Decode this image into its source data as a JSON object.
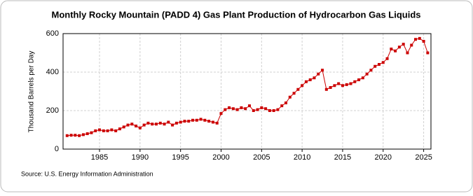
{
  "chart_data": {
    "type": "line",
    "title": "Monthly Rocky Mountain (PADD 4) Gas Plant Production of Hydrocarbon Gas Liquids",
    "y_label": "Thousand Barrels per Day",
    "source": "Source: U.S. Energy Information Administration",
    "x": [
      1981,
      1981.5,
      1982,
      1982.5,
      1983,
      1983.5,
      1984,
      1984.5,
      1985,
      1985.5,
      1986,
      1986.5,
      1987,
      1987.5,
      1988,
      1988.5,
      1989,
      1989.5,
      1990,
      1990.5,
      1991,
      1991.5,
      1992,
      1992.5,
      1993,
      1993.5,
      1994,
      1994.5,
      1995,
      1995.5,
      1996,
      1996.5,
      1997,
      1997.5,
      1998,
      1998.5,
      1999,
      1999.5,
      2000,
      2000.5,
      2001,
      2001.5,
      2002,
      2002.5,
      2003,
      2003.5,
      2004,
      2004.5,
      2005,
      2005.5,
      2006,
      2006.5,
      2007,
      2007.5,
      2008,
      2008.5,
      2009,
      2009.5,
      2010,
      2010.5,
      2011,
      2011.5,
      2012,
      2012.5,
      2013,
      2013.5,
      2014,
      2014.5,
      2015,
      2015.5,
      2016,
      2016.5,
      2017,
      2017.5,
      2018,
      2018.5,
      2019,
      2019.5,
      2020,
      2020.5,
      2021,
      2021.5,
      2022,
      2022.5,
      2023,
      2023.5,
      2024,
      2024.5,
      2025,
      2025.5
    ],
    "series": [
      {
        "name": "Gas Plant Production",
        "color": "#cc0000",
        "values": [
          70,
          72,
          72,
          70,
          75,
          80,
          85,
          95,
          100,
          95,
          95,
          100,
          95,
          105,
          115,
          125,
          130,
          120,
          110,
          125,
          135,
          130,
          130,
          135,
          130,
          140,
          125,
          135,
          140,
          145,
          145,
          150,
          150,
          155,
          150,
          145,
          140,
          135,
          185,
          205,
          215,
          210,
          205,
          215,
          210,
          225,
          200,
          205,
          215,
          210,
          200,
          200,
          205,
          225,
          240,
          270,
          290,
          310,
          330,
          350,
          360,
          370,
          390,
          410,
          310,
          320,
          330,
          340,
          330,
          335,
          340,
          350,
          360,
          370,
          390,
          410,
          430,
          440,
          450,
          470,
          520,
          510,
          530,
          545,
          500,
          540,
          570,
          575,
          560,
          500
        ]
      }
    ],
    "xlim": [
      1980.5,
      2025.9
    ],
    "ylim": [
      0,
      600
    ],
    "xticks": [
      1985,
      1990,
      1995,
      2000,
      2005,
      2010,
      2015,
      2020,
      2025
    ],
    "yticks": [
      0,
      200,
      400,
      600
    ],
    "grid": true
  }
}
